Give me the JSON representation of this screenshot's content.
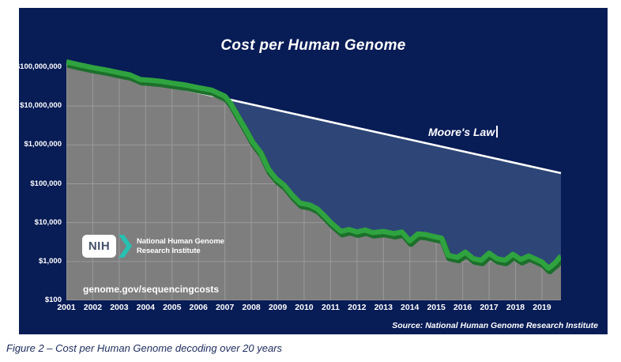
{
  "page": {
    "caption": "Figure 2 – Cost per Human Genome decoding over 20 years"
  },
  "chart": {
    "title": "Cost per Human Genome",
    "moore_label": "Moore's Law",
    "genome_url": "genome.gov/sequencingcosts",
    "source": "Source: National Human Genome Research Institute",
    "logo": {
      "acronym": "NIH",
      "org_line1": "National Human Genome",
      "org_line2": "Research Institute"
    },
    "colors": {
      "panel_navy": "#081c56",
      "moore_fill_blue": "#2d4677",
      "plot_gray": "#7e7e7e",
      "gridline_gray": "#9a9a9a",
      "curve_green": "#2fa33f",
      "curve_green_dark": "#1c6f2b",
      "moore_line_white": "#ffffff",
      "nih_teal": "#27c0b1"
    }
  },
  "chart_data": {
    "type": "area",
    "title": "Cost per Human Genome",
    "y_scale": "log",
    "x_range": [
      2001,
      2019.72
    ],
    "y_range": [
      100,
      100000000
    ],
    "grid": true,
    "x_axis": {
      "ticks": [
        2001,
        2002,
        2003,
        2004,
        2005,
        2006,
        2007,
        2008,
        2009,
        2010,
        2011,
        2012,
        2013,
        2014,
        2015,
        2016,
        2017,
        2018,
        2019
      ]
    },
    "y_axis": {
      "ticks": [
        {
          "label": "$100,000,000",
          "value": 100000000
        },
        {
          "label": "$10,000,000",
          "value": 10000000
        },
        {
          "label": "$1,000,000",
          "value": 1000000
        },
        {
          "label": "$100,000",
          "value": 100000
        },
        {
          "label": "$10,000",
          "value": 10000
        },
        {
          "label": "$1,000",
          "value": 1000
        },
        {
          "label": "$100",
          "value": 100
        }
      ]
    },
    "series": [
      {
        "name": "Cost per Human Genome",
        "style": "thick-green-band-over-gray-area",
        "points": [
          [
            2001.0,
            135000000
          ],
          [
            2001.5,
            112000000
          ],
          [
            2002.0,
            95000000
          ],
          [
            2002.5,
            83000000
          ],
          [
            2003.0,
            70000000
          ],
          [
            2003.4,
            62000000
          ],
          [
            2003.8,
            47000000
          ],
          [
            2004.2,
            45000000
          ],
          [
            2004.6,
            42000000
          ],
          [
            2005.0,
            38000000
          ],
          [
            2005.5,
            34000000
          ],
          [
            2006.0,
            29000000
          ],
          [
            2006.5,
            25000000
          ],
          [
            2007.0,
            17500000
          ],
          [
            2007.2,
            12000000
          ],
          [
            2007.45,
            6000000
          ],
          [
            2007.75,
            2700000
          ],
          [
            2008.05,
            1150000
          ],
          [
            2008.35,
            630000
          ],
          [
            2008.65,
            230000
          ],
          [
            2008.95,
            130000
          ],
          [
            2009.25,
            89000
          ],
          [
            2009.55,
            50000
          ],
          [
            2009.85,
            31000
          ],
          [
            2010.2,
            28000
          ],
          [
            2010.5,
            22000
          ],
          [
            2010.8,
            14000
          ],
          [
            2011.0,
            10000
          ],
          [
            2011.4,
            5800
          ],
          [
            2011.7,
            6500
          ],
          [
            2012.0,
            5600
          ],
          [
            2012.3,
            6300
          ],
          [
            2012.6,
            5400
          ],
          [
            2013.0,
            5800
          ],
          [
            2013.4,
            5100
          ],
          [
            2013.7,
            5600
          ],
          [
            2014.0,
            3300
          ],
          [
            2014.3,
            5000
          ],
          [
            2014.6,
            4800
          ],
          [
            2014.9,
            4300
          ],
          [
            2015.2,
            3900
          ],
          [
            2015.45,
            1400
          ],
          [
            2015.8,
            1250
          ],
          [
            2016.1,
            1700
          ],
          [
            2016.4,
            1150
          ],
          [
            2016.7,
            1050
          ],
          [
            2017.0,
            1600
          ],
          [
            2017.3,
            1150
          ],
          [
            2017.6,
            1050
          ],
          [
            2017.9,
            1500
          ],
          [
            2018.2,
            1100
          ],
          [
            2018.5,
            1350
          ],
          [
            2018.8,
            1100
          ],
          [
            2019.0,
            950
          ],
          [
            2019.25,
            650
          ],
          [
            2019.5,
            900
          ],
          [
            2019.72,
            1350
          ]
        ]
      },
      {
        "name": "Moore's Law",
        "style": "white-straight-line-log-scale",
        "points": [
          [
            2001.0,
            126000000
          ],
          [
            2019.72,
            188000
          ]
        ]
      }
    ],
    "annotations": [
      "Moore's Law"
    ],
    "legend": "none"
  }
}
